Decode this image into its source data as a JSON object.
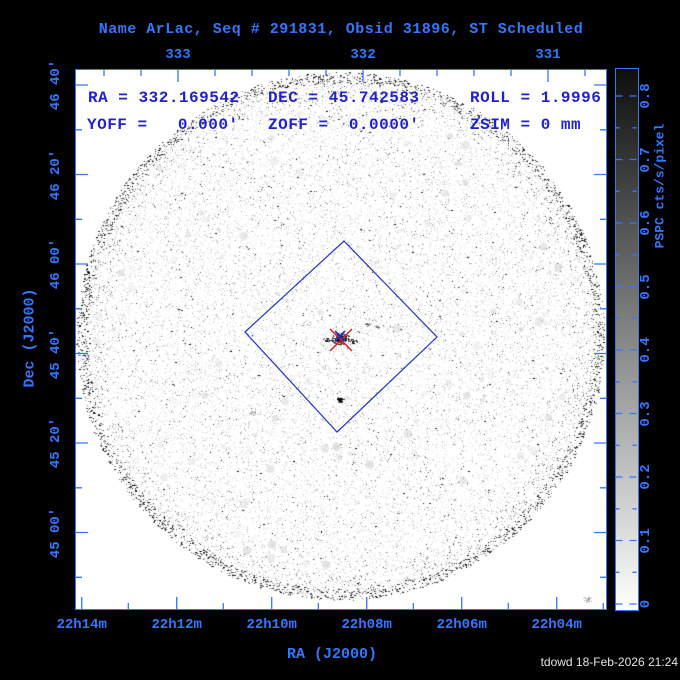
{
  "title": "Name ArLac, Seq # 291831, Obsid 31896, ST Scheduled",
  "info": {
    "line1": [
      "RA = 332.169542",
      "DEC = 45.742583",
      "ROLL = 1.9996"
    ],
    "line2": [
      "YOFF =   0.000'",
      "ZOFF =  0.0000'",
      "ZSIM = 0 mm"
    ]
  },
  "axes": {
    "top": {
      "tick_labels": [
        "333",
        "332",
        "331"
      ]
    },
    "bottom": {
      "tick_labels": [
        "22h14m",
        "22h12m",
        "22h10m",
        "22h08m",
        "22h06m",
        "22h04m"
      ],
      "axis_label": "RA (J2000)"
    },
    "left": {
      "tick_labels": [
        "46 40'",
        "46 20'",
        "46 00'",
        "45 40'",
        "45 20'",
        "45 00'"
      ],
      "axis_label": "Dec (J2000)"
    }
  },
  "colorbar": {
    "label": "PSPC cts/s/pixel",
    "tick_labels": [
      "0.8",
      "0.7",
      "0.6",
      "0.5",
      "0.4",
      "0.3",
      "0.2",
      "0.1",
      "0"
    ],
    "min": 0,
    "max": 0.8
  },
  "footer": "tdowd 18-Feb-2026 21:24",
  "colors": {
    "frame_blue": "#3377ff",
    "annotation_blue": "#2222cc",
    "marker_red": "#e02020",
    "marker_blue": "#2233cc",
    "background": "#000000",
    "field_white": "#ffffff"
  },
  "chart_data": {
    "type": "heatmap",
    "title": "Name ArLac, Seq # 291831, Obsid 31896, ST Scheduled",
    "xlabel": "RA (J2000)",
    "ylabel": "Dec (J2000)",
    "x_tick_labels_hours": [
      "22h14m",
      "22h12m",
      "22h10m",
      "22h08m",
      "22h06m",
      "22h04m"
    ],
    "x_tick_labels_degrees": [
      333,
      332,
      331
    ],
    "y_tick_labels_dec": [
      "46 40'",
      "46 20'",
      "46 00'",
      "45 40'",
      "45 20'",
      "45 00'"
    ],
    "x_range_ra_deg": [
      333.54,
      330.74
    ],
    "y_range_dec_deg": [
      44.71,
      46.73
    ],
    "pointing": {
      "name": "ArLac",
      "seq": "291831",
      "obsid": "31896",
      "status": "ST Scheduled",
      "ra_deg": 332.169542,
      "dec_deg": 45.742583,
      "roll_deg": 1.9996,
      "yoff_arcmin": 0.0,
      "zoff_arcmin": 0.0,
      "zsim_mm": 0
    },
    "colorbar": {
      "label": "PSPC cts/s/pixel",
      "range": [
        0,
        0.8
      ],
      "tick_step": 0.1,
      "gradient": "dark gray at max (top) to white at 0 (bottom)"
    },
    "field_of_view": {
      "shape": "circle",
      "center_ra_deg": 332.17,
      "center_dec_deg": 45.74,
      "radius_deg": 0.98,
      "appearance": "white disk filled with fine speckle noise, dense dark speckled rim"
    },
    "detector_outline": {
      "shape": "square (diamond)",
      "center_ra_deg": 332.17,
      "center_dec_deg": 45.74,
      "half_diagonal_deg": 0.36,
      "rotation_deg": 2.0,
      "color": "blue"
    },
    "marked_target": {
      "symbol": "large red X with small blue X",
      "ra_deg": 332.17,
      "dec_deg": 45.74
    },
    "sources": [
      {
        "ra_deg": 332.15,
        "dec_deg": 45.72,
        "intensity": "bright main target (AR Lac), dark irregular blob"
      },
      {
        "ra_deg": 332.14,
        "dec_deg": 45.49,
        "intensity": "moderate compact point source"
      },
      {
        "ra_deg": 331.99,
        "dec_deg": 45.77,
        "intensity": "faint close pair"
      },
      {
        "ra_deg": 332.6,
        "dec_deg": 45.45,
        "intensity": "very faint diffuse spot"
      },
      {
        "ra_deg": 330.84,
        "dec_deg": 44.75,
        "intensity": "very faint smudge near field edge"
      }
    ]
  }
}
